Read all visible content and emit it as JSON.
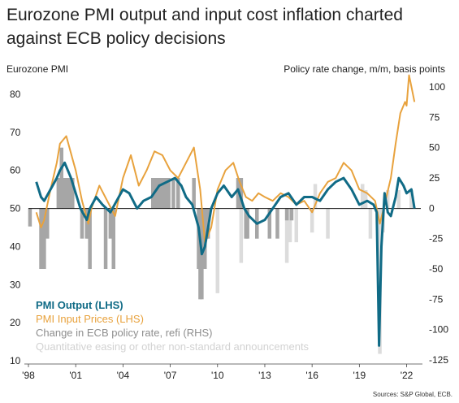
{
  "title": "Eurozone PMI output and input cost inflation charted against ECB policy decisions",
  "left_axis_title": "Eurozone PMI",
  "right_axis_title": "Policy rate change, m/m, basis points",
  "source": "Sources: S&P Global, ECB.",
  "colors": {
    "output": "#106b86",
    "input": "#e8a23d",
    "refi": "#a6a6a6",
    "qe": "#dcdcdc"
  },
  "chart_data": {
    "type": "line",
    "x_ticks": [
      "'98",
      "'01",
      "'04",
      "'07",
      "'10",
      "'13",
      "'16",
      "'19",
      "'22"
    ],
    "x_range": [
      1998.0,
      2022.9
    ],
    "ylim_left": [
      10,
      80
    ],
    "yticks_left": [
      "10",
      "20",
      "30",
      "40",
      "50",
      "60",
      "70",
      "80"
    ],
    "ylim_right": [
      -125,
      100
    ],
    "yticks_right": [
      "-125",
      "-100",
      "-75",
      "-50",
      "-25",
      "0",
      "25",
      "50",
      "75",
      "100"
    ],
    "series": [
      {
        "name": "PMI  Output (LHS)",
        "axis": "left",
        "x": [
          1998.5,
          1998.8,
          1999.0,
          1999.4,
          1999.8,
          2000.0,
          2000.3,
          2000.7,
          2001.0,
          2001.3,
          2001.7,
          2001.9,
          2002.3,
          2002.7,
          2003.2,
          2003.6,
          2004.0,
          2004.4,
          2004.9,
          2005.3,
          2005.8,
          2006.3,
          2006.8,
          2007.3,
          2007.7,
          2008.0,
          2008.4,
          2008.8,
          2009.0,
          2009.2,
          2009.6,
          2010.0,
          2010.4,
          2010.9,
          2011.3,
          2011.7,
          2012.0,
          2012.5,
          2013.0,
          2013.5,
          2014.0,
          2014.5,
          2015.0,
          2015.5,
          2016.0,
          2016.5,
          2017.0,
          2017.5,
          2018.0,
          2018.5,
          2019.0,
          2019.5,
          2019.9,
          2020.1,
          2020.25,
          2020.4,
          2020.6,
          2020.8,
          2021.0,
          2021.3,
          2021.5,
          2021.8,
          2022.0,
          2022.3,
          2022.5
        ],
        "y": [
          57,
          53,
          52,
          55,
          58,
          60,
          62,
          58,
          54,
          50,
          47,
          50,
          53,
          51,
          49,
          52,
          55,
          54,
          50,
          52,
          53,
          56,
          57,
          58,
          56,
          53,
          51,
          45,
          38,
          40,
          50,
          54,
          56,
          53,
          55,
          50,
          48,
          46,
          47,
          50,
          53,
          54,
          51,
          53,
          53,
          52,
          55,
          57,
          58,
          55,
          51,
          52,
          51,
          49,
          14,
          40,
          54,
          49,
          48,
          53,
          58,
          56,
          54,
          55,
          50
        ]
      },
      {
        "name": "PMI Input Prices (LHS)",
        "axis": "left",
        "x": [
          1998.5,
          1998.8,
          1999.0,
          1999.4,
          1999.8,
          2000.0,
          2000.4,
          2000.8,
          2001.0,
          2001.4,
          2001.8,
          2002.0,
          2002.5,
          2003.0,
          2003.5,
          2004.0,
          2004.5,
          2005.0,
          2005.5,
          2006.0,
          2006.5,
          2007.0,
          2007.5,
          2008.0,
          2008.5,
          2008.9,
          2009.2,
          2009.6,
          2010.0,
          2010.5,
          2011.0,
          2011.4,
          2011.8,
          2012.2,
          2012.6,
          2013.0,
          2013.5,
          2014.0,
          2014.5,
          2015.0,
          2015.5,
          2016.0,
          2016.5,
          2017.0,
          2017.5,
          2018.0,
          2018.5,
          2019.0,
          2019.5,
          2020.0,
          2020.3,
          2020.6,
          2021.0,
          2021.3,
          2021.6,
          2021.9,
          2022.0,
          2022.15,
          2022.3,
          2022.5
        ],
        "y": [
          49,
          45,
          47,
          55,
          62,
          67,
          69,
          63,
          60,
          52,
          46,
          50,
          56,
          52,
          48,
          58,
          64,
          56,
          60,
          65,
          64,
          60,
          58,
          62,
          66,
          55,
          41,
          45,
          55,
          60,
          62,
          57,
          53,
          52,
          54,
          53,
          52,
          54,
          53,
          51,
          52,
          49,
          54,
          57,
          58,
          62,
          60,
          55,
          54,
          52,
          46,
          51,
          58,
          67,
          75,
          78,
          77,
          85,
          82,
          78
        ]
      }
    ],
    "bars": {
      "name": "Change in ECB policy rate, refi (RHS)",
      "axis": "right",
      "x": [
        1998.1,
        1998.8,
        1999.0,
        1999.2,
        1999.9,
        2000.1,
        2000.2,
        2000.4,
        2000.6,
        2000.8,
        2001.4,
        2001.7,
        2001.8,
        2001.9,
        2002.9,
        2003.2,
        2003.4,
        2005.9,
        2006.1,
        2006.2,
        2006.4,
        2006.6,
        2006.8,
        2006.9,
        2007.2,
        2007.5,
        2008.5,
        2008.8,
        2008.9,
        2009.0,
        2009.2,
        2009.3,
        2009.4,
        2011.3,
        2011.5,
        2011.8,
        2011.9,
        2012.5,
        2013.3,
        2013.8,
        2014.4,
        2014.7
      ],
      "y": [
        -15,
        -50,
        -50,
        -25,
        25,
        50,
        25,
        25,
        25,
        25,
        -25,
        -25,
        -25,
        -50,
        -50,
        -25,
        -50,
        25,
        25,
        25,
        25,
        25,
        25,
        25,
        25,
        25,
        25,
        -50,
        -75,
        -75,
        -50,
        -25,
        -25,
        25,
        25,
        -25,
        -25,
        -25,
        -25,
        -25,
        -10,
        -10
      ]
    },
    "qe_bars": {
      "name": "Quantitative easing or other non-standard announcements",
      "axis": "right",
      "x": [
        2010.0,
        2011.5,
        2012.5,
        2014.4,
        2014.6,
        2015.0,
        2016.0,
        2016.2,
        2017.0,
        2019.2,
        2019.4,
        2019.7,
        2020.3,
        2020.5,
        2020.8,
        2021.5,
        2022.3
      ],
      "y": [
        -70,
        -45,
        -25,
        -45,
        -28,
        -28,
        -20,
        20,
        -25,
        20,
        15,
        -25,
        -120,
        -20,
        15,
        15,
        15
      ]
    }
  }
}
